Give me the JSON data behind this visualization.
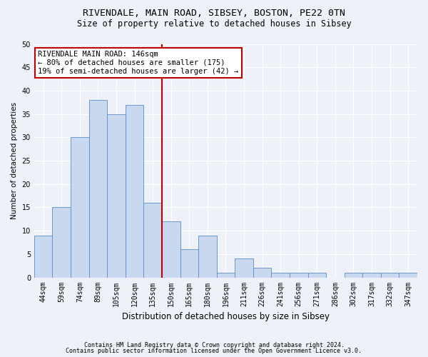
{
  "title1": "RIVENDALE, MAIN ROAD, SIBSEY, BOSTON, PE22 0TN",
  "title2": "Size of property relative to detached houses in Sibsey",
  "xlabel": "Distribution of detached houses by size in Sibsey",
  "ylabel": "Number of detached properties",
  "categories": [
    "44sqm",
    "59sqm",
    "74sqm",
    "89sqm",
    "105sqm",
    "120sqm",
    "135sqm",
    "150sqm",
    "165sqm",
    "180sqm",
    "196sqm",
    "211sqm",
    "226sqm",
    "241sqm",
    "256sqm",
    "271sqm",
    "286sqm",
    "302sqm",
    "317sqm",
    "332sqm",
    "347sqm"
  ],
  "values": [
    9,
    15,
    30,
    38,
    35,
    37,
    16,
    12,
    6,
    9,
    1,
    4,
    2,
    1,
    1,
    1,
    0,
    1,
    1,
    1,
    1
  ],
  "bar_color": "#c8d8ee",
  "bar_edge_color": "#5b8cc8",
  "vline_x_index": 6,
  "vline_color": "#c00000",
  "annotation_title": "RIVENDALE MAIN ROAD: 146sqm",
  "annotation_line1": "← 80% of detached houses are smaller (175)",
  "annotation_line2": "19% of semi-detached houses are larger (42) →",
  "annotation_box_color": "#ffffff",
  "annotation_box_edge": "#c00000",
  "ylim": [
    0,
    50
  ],
  "yticks": [
    0,
    5,
    10,
    15,
    20,
    25,
    30,
    35,
    40,
    45,
    50
  ],
  "footer1": "Contains HM Land Registry data © Crown copyright and database right 2024.",
  "footer2": "Contains public sector information licensed under the Open Government Licence v3.0.",
  "bg_color": "#eef2f8",
  "grid_color": "#ffffff",
  "title1_fontsize": 9.5,
  "title2_fontsize": 8.5,
  "xlabel_fontsize": 8.5,
  "ylabel_fontsize": 7.5,
  "tick_fontsize": 7.0,
  "ann_fontsize": 7.5,
  "footer_fontsize": 6.0
}
